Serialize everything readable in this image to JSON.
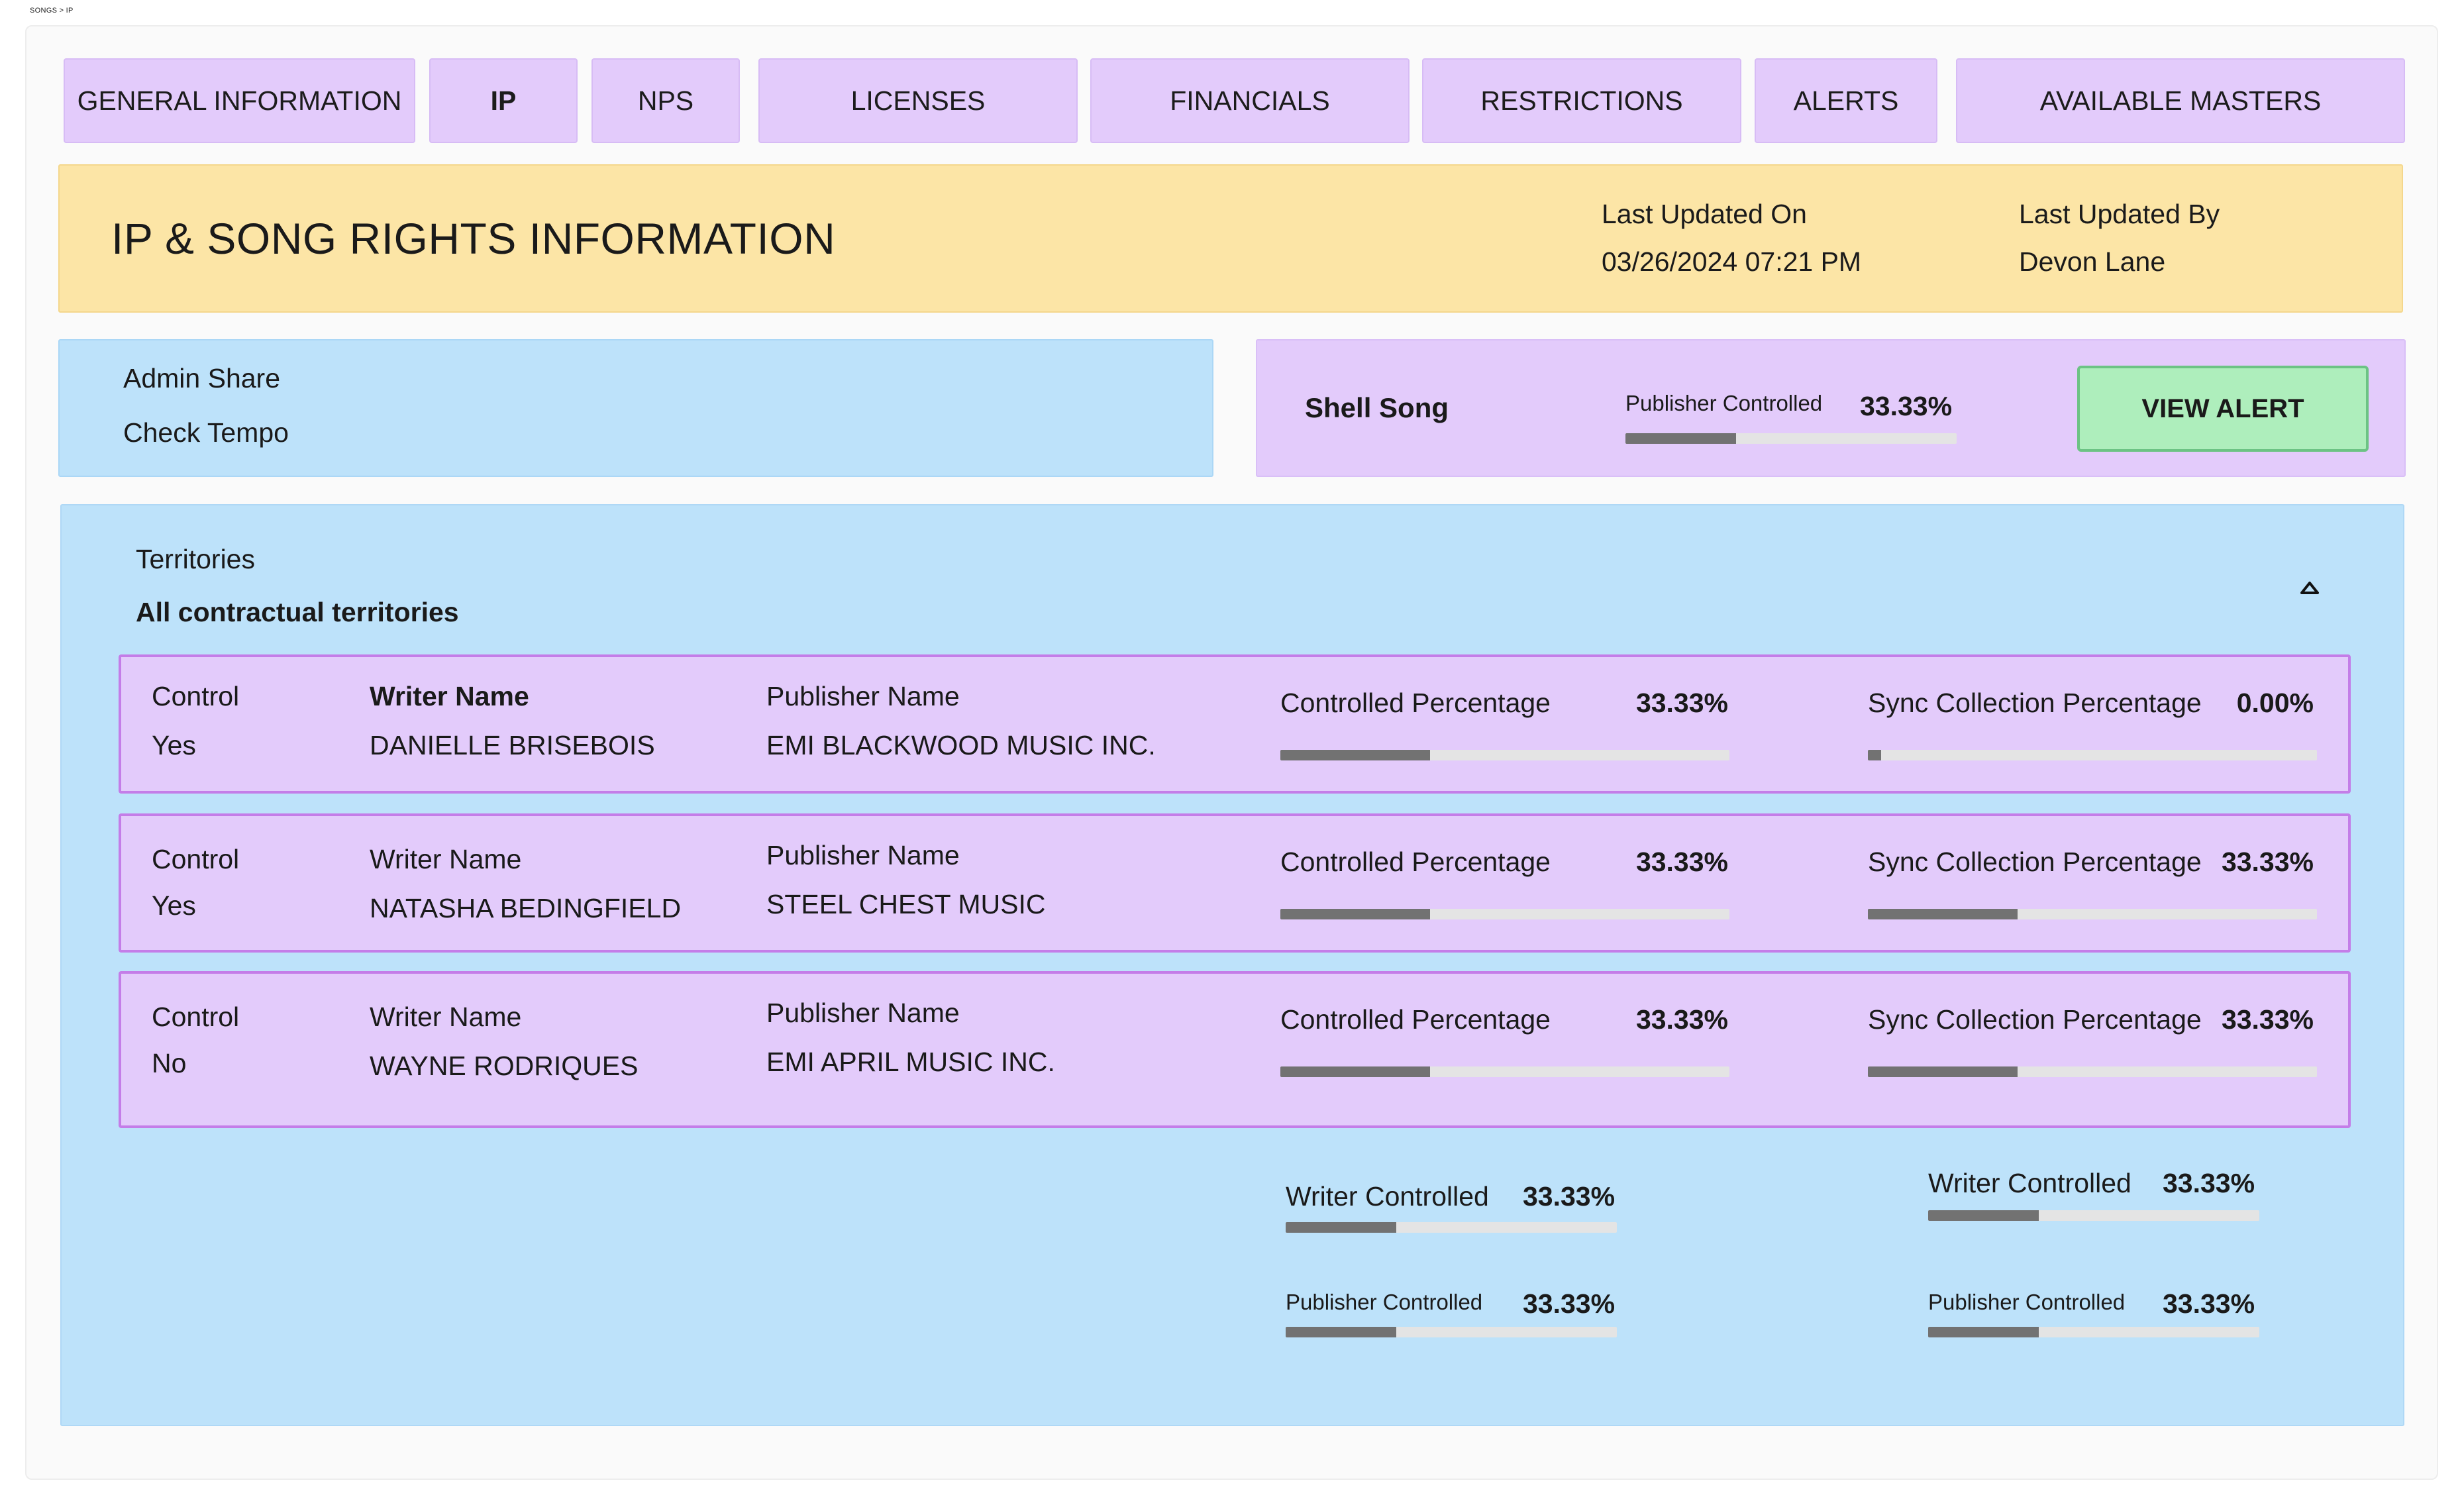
{
  "breadcrumb": "SONGS > IP",
  "tabs": [
    {
      "label": "GENERAL INFORMATION",
      "active": false
    },
    {
      "label": "IP",
      "active": true
    },
    {
      "label": "NPS",
      "active": false
    },
    {
      "label": "LICENSES",
      "active": false
    },
    {
      "label": "FINANCIALS",
      "active": false
    },
    {
      "label": "RESTRICTIONS",
      "active": false
    },
    {
      "label": "ALERTS",
      "active": false
    },
    {
      "label": "AVAILABLE MASTERS",
      "active": false
    }
  ],
  "header": {
    "title": "IP & SONG RIGHTS INFORMATION",
    "last_updated_on_label": "Last Updated On",
    "last_updated_on_value": "03/26/2024 07:21 PM",
    "last_updated_by_label": "Last Updated By",
    "last_updated_by_value": "Devon Lane"
  },
  "admin": {
    "line1": "Admin Share",
    "line2": "Check Tempo"
  },
  "shell": {
    "title": "Shell Song",
    "publisher_label": "Publisher Controlled",
    "publisher_pct": "33.33%",
    "publisher_fraction": 0.3333,
    "alert_button": "VIEW ALERT"
  },
  "territories": {
    "label": "Territories",
    "value": "All contractual territories",
    "collapse_icon": "chevron-up-icon",
    "rows": [
      {
        "control_label": "Control",
        "control_value": "Yes",
        "writer_label": "Writer Name",
        "writer_value": "DANIELLE BRISEBOIS",
        "publisher_label": "Publisher Name",
        "publisher_value": "EMI BLACKWOOD MUSIC INC.",
        "controlled_label": "Controlled Percentage",
        "controlled_pct": "33.33%",
        "controlled_fraction": 0.3333,
        "sync_label": "Sync Collection Percentage",
        "sync_pct": "0.00%",
        "sync_fraction": 0.0
      },
      {
        "control_label": "Control",
        "control_value": "Yes",
        "writer_label": "Writer Name",
        "writer_value": "NATASHA BEDINGFIELD",
        "publisher_label": "Publisher Name",
        "publisher_value": "STEEL CHEST MUSIC",
        "controlled_label": "Controlled Percentage",
        "controlled_pct": "33.33%",
        "controlled_fraction": 0.3333,
        "sync_label": "Sync Collection Percentage",
        "sync_pct": "33.33%",
        "sync_fraction": 0.3333
      },
      {
        "control_label": "Control",
        "control_value": "No",
        "writer_label": "Writer Name",
        "writer_value": "WAYNE RODRIQUES",
        "publisher_label": "Publisher Name",
        "publisher_value": "EMI APRIL MUSIC INC.",
        "controlled_label": "Controlled Percentage",
        "controlled_pct": "33.33%",
        "controlled_fraction": 0.3333,
        "sync_label": "Sync Collection Percentage",
        "sync_pct": "33.33%",
        "sync_fraction": 0.3333
      }
    ],
    "summary_left": {
      "writer_label": "Writer Controlled",
      "writer_pct": "33.33%",
      "writer_fraction": 0.3333,
      "publisher_label": "Publisher Controlled",
      "publisher_pct": "33.33%",
      "publisher_fraction": 0.3333
    },
    "summary_right": {
      "writer_label": "Writer Controlled",
      "writer_pct": "33.33%",
      "writer_fraction": 0.3333,
      "publisher_label": "Publisher Controlled",
      "publisher_pct": "33.33%",
      "publisher_fraction": 0.3333
    }
  }
}
